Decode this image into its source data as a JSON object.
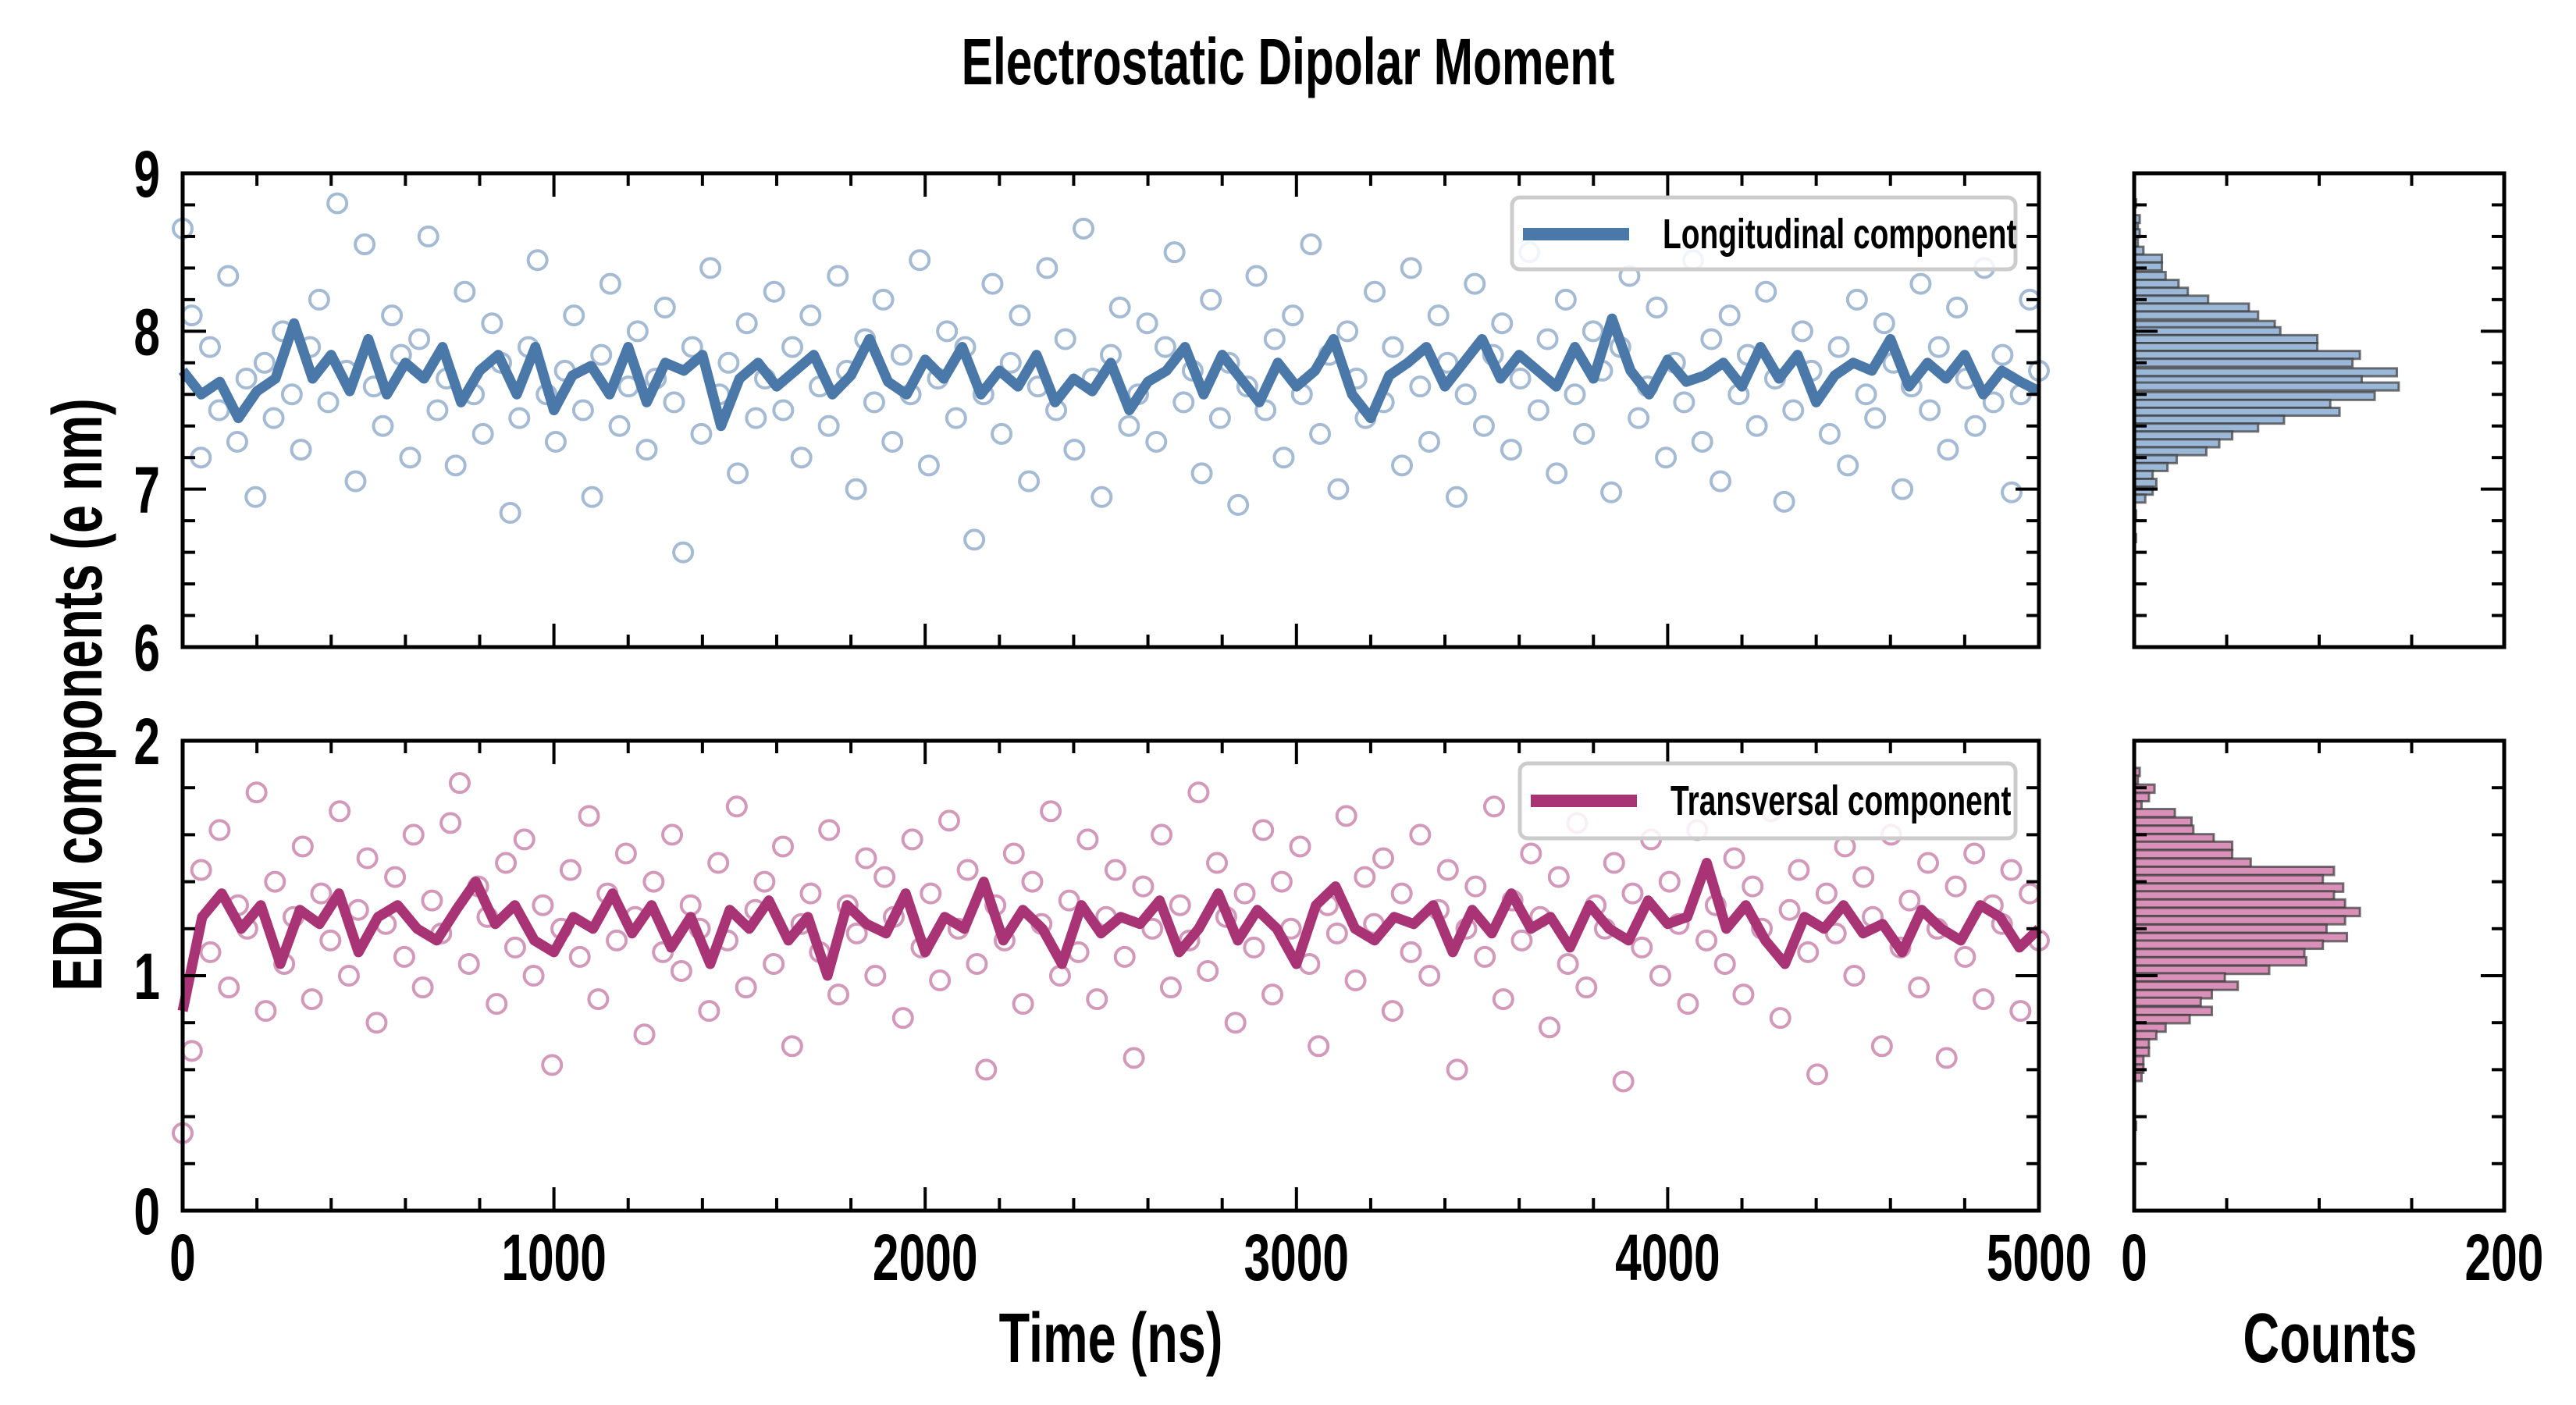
{
  "title": "Electrostatic Dipolar Moment",
  "colors": {
    "longitudinal": "#4a78a8",
    "transversal": "#a83375",
    "hist_long": "#9bb8d8",
    "hist_trans": "#d990b9",
    "hist_edge": "#3a3a3a"
  },
  "chart_data": [
    {
      "type": "scatter",
      "panel": "top-left",
      "xlabel": "Time (ns)",
      "ylabel": "EDM components (e nm)",
      "xlim": [
        0,
        5000
      ],
      "ylim": [
        6,
        9
      ],
      "xticks": [
        "0",
        "1000",
        "2000",
        "3000",
        "4000",
        "5000"
      ],
      "yticks": [
        "6",
        "7",
        "8",
        "9"
      ],
      "legend": {
        "label": "Longitudinal component",
        "position": "top-right"
      },
      "scatter_y": [
        8.65,
        8.1,
        7.2,
        7.9,
        7.5,
        8.35,
        7.3,
        7.7,
        6.95,
        7.8,
        7.45,
        8.0,
        7.6,
        7.25,
        7.9,
        8.2,
        7.55,
        8.81,
        7.75,
        7.05,
        8.55,
        7.65,
        7.4,
        8.1,
        7.85,
        7.2,
        7.95,
        8.6,
        7.5,
        7.7,
        7.15,
        8.25,
        7.6,
        7.35,
        8.05,
        7.8,
        6.85,
        7.45,
        7.9,
        8.45,
        7.6,
        7.3,
        7.75,
        8.1,
        7.5,
        6.95,
        7.85,
        8.3,
        7.4,
        7.65,
        8.0,
        7.25,
        7.7,
        8.15,
        7.55,
        6.6,
        7.9,
        7.35,
        8.4,
        7.6,
        7.8,
        7.1,
        8.05,
        7.45,
        7.7,
        8.25,
        7.5,
        7.9,
        7.2,
        8.1,
        7.65,
        7.4,
        8.35,
        7.75,
        7.0,
        7.95,
        7.55,
        8.2,
        7.3,
        7.85,
        7.6,
        8.45,
        7.15,
        7.7,
        8.0,
        7.45,
        7.9,
        6.68,
        7.6,
        8.3,
        7.35,
        7.8,
        8.1,
        7.05,
        7.65,
        8.4,
        7.5,
        7.95,
        7.25,
        8.65,
        7.7,
        6.95,
        7.85,
        8.15,
        7.4,
        7.6,
        8.05,
        7.3,
        7.9,
        8.5,
        7.55,
        7.75,
        7.1,
        8.2,
        7.45,
        7.8,
        6.9,
        7.65,
        8.35,
        7.5,
        7.95,
        7.2,
        8.1,
        7.6,
        8.55,
        7.35,
        7.85,
        7.0,
        8.0,
        7.7,
        7.45,
        8.25,
        7.55,
        7.9,
        7.15,
        8.4,
        7.65,
        7.3,
        8.1,
        7.8,
        6.95,
        7.6,
        8.3,
        7.4,
        7.85,
        8.05,
        7.25,
        7.7,
        8.5,
        7.5,
        7.95,
        7.1,
        8.2,
        7.6,
        7.35,
        8.0,
        7.75,
        6.98,
        7.9,
        8.35,
        7.45,
        7.65,
        8.15,
        7.2,
        7.8,
        7.55,
        8.45,
        7.3,
        7.95,
        7.05,
        8.1,
        7.6,
        7.85,
        7.4,
        8.25,
        7.7,
        6.92,
        7.5,
        8.0,
        7.75,
        8.6,
        7.35,
        7.9,
        7.15,
        8.2,
        7.6,
        7.45,
        8.05,
        7.8,
        7.0,
        7.65,
        8.3,
        7.5,
        7.9,
        7.25,
        8.15,
        7.7,
        7.4,
        8.4,
        7.55,
        7.85,
        6.98,
        7.6,
        8.2,
        7.75
      ],
      "moving_average_y": [
        7.75,
        7.6,
        7.68,
        7.45,
        7.62,
        7.7,
        8.05,
        7.7,
        7.85,
        7.62,
        7.95,
        7.6,
        7.8,
        7.7,
        7.9,
        7.55,
        7.75,
        7.85,
        7.6,
        7.9,
        7.5,
        7.72,
        7.78,
        7.6,
        7.9,
        7.55,
        7.8,
        7.75,
        7.85,
        7.4,
        7.7,
        7.8,
        7.65,
        7.75,
        7.85,
        7.6,
        7.72,
        7.95,
        7.68,
        7.6,
        7.82,
        7.7,
        7.9,
        7.6,
        7.75,
        7.65,
        7.85,
        7.55,
        7.7,
        7.62,
        7.8,
        7.5,
        7.68,
        7.75,
        7.9,
        7.6,
        7.85,
        7.7,
        7.55,
        7.8,
        7.65,
        7.75,
        7.95,
        7.6,
        7.45,
        7.72,
        7.8,
        7.9,
        7.65,
        7.8,
        7.95,
        7.7,
        7.85,
        7.75,
        7.65,
        7.9,
        7.7,
        8.08,
        7.75,
        7.6,
        7.82,
        7.68,
        7.72,
        7.8,
        7.65,
        7.9,
        7.7,
        7.85,
        7.55,
        7.72,
        7.8,
        7.75,
        7.95,
        7.65,
        7.8,
        7.7,
        7.85,
        7.6,
        7.75,
        7.68,
        7.62
      ]
    },
    {
      "type": "scatter",
      "panel": "bottom-left",
      "xlabel": "Time (ns)",
      "xlim": [
        0,
        5000
      ],
      "ylim": [
        0,
        2
      ],
      "xticks": [
        "0",
        "1000",
        "2000",
        "3000",
        "4000",
        "5000"
      ],
      "yticks": [
        "0",
        "1",
        "2"
      ],
      "legend": {
        "label": "Transversal component",
        "position": "top-right"
      },
      "scatter_y": [
        0.33,
        0.68,
        1.45,
        1.1,
        1.62,
        0.95,
        1.3,
        1.2,
        1.78,
        0.85,
        1.4,
        1.05,
        1.25,
        1.55,
        0.9,
        1.35,
        1.15,
        1.7,
        1.0,
        1.28,
        1.5,
        0.8,
        1.22,
        1.42,
        1.08,
        1.6,
        0.95,
        1.32,
        1.18,
        1.65,
        1.82,
        1.05,
        1.38,
        1.25,
        0.88,
        1.48,
        1.12,
        1.58,
        1.0,
        1.3,
        0.62,
        1.2,
        1.45,
        1.08,
        1.68,
        0.9,
        1.35,
        1.15,
        1.52,
        1.25,
        0.75,
        1.4,
        1.1,
        1.6,
        1.02,
        1.3,
        1.2,
        0.85,
        1.48,
        1.15,
        1.72,
        0.95,
        1.28,
        1.4,
        1.05,
        1.55,
        0.7,
        1.22,
        1.35,
        1.1,
        1.62,
        0.92,
        1.3,
        1.18,
        1.5,
        1.0,
        1.42,
        1.25,
        0.82,
        1.58,
        1.12,
        1.35,
        0.98,
        1.66,
        1.2,
        1.45,
        1.05,
        0.6,
        1.3,
        1.15,
        1.52,
        0.88,
        1.4,
        1.22,
        1.7,
        1.0,
        1.32,
        1.1,
        1.58,
        0.9,
        1.25,
        1.45,
        1.08,
        0.65,
        1.38,
        1.2,
        1.6,
        0.95,
        1.3,
        1.15,
        1.78,
        1.02,
        1.48,
        1.25,
        0.8,
        1.35,
        1.12,
        1.62,
        0.92,
        1.4,
        1.2,
        1.55,
        1.05,
        0.7,
        1.3,
        1.18,
        1.68,
        0.98,
        1.42,
        1.22,
        1.5,
        0.85,
        1.35,
        1.1,
        1.6,
        1.0,
        1.28,
        1.45,
        0.6,
        1.2,
        1.38,
        1.08,
        1.72,
        0.9,
        1.32,
        1.15,
        1.52,
        1.25,
        0.78,
        1.42,
        1.05,
        1.65,
        0.95,
        1.3,
        1.2,
        1.48,
        0.55,
        1.35,
        1.12,
        1.58,
        1.0,
        1.4,
        1.22,
        0.88,
        1.62,
        1.15,
        1.3,
        1.05,
        1.5,
        0.92,
        1.38,
        1.2,
        1.7,
        0.82,
        1.28,
        1.45,
        1.1,
        0.58,
        1.35,
        1.18,
        1.55,
        1.0,
        1.42,
        1.25,
        0.7,
        1.6,
        1.12,
        1.32,
        0.95,
        1.48,
        1.2,
        0.65,
        1.38,
        1.08,
        1.52,
        0.9,
        1.3,
        1.22,
        1.45,
        0.85,
        1.35,
        1.15
      ],
      "moving_average_y": [
        0.85,
        1.25,
        1.35,
        1.2,
        1.3,
        1.05,
        1.28,
        1.22,
        1.35,
        1.1,
        1.25,
        1.3,
        1.2,
        1.15,
        1.28,
        1.4,
        1.22,
        1.3,
        1.15,
        1.1,
        1.25,
        1.2,
        1.35,
        1.18,
        1.3,
        1.12,
        1.25,
        1.05,
        1.28,
        1.2,
        1.32,
        1.15,
        1.25,
        1.0,
        1.3,
        1.22,
        1.18,
        1.35,
        1.1,
        1.25,
        1.2,
        1.4,
        1.15,
        1.28,
        1.2,
        1.05,
        1.3,
        1.18,
        1.25,
        1.22,
        1.32,
        1.1,
        1.2,
        1.35,
        1.15,
        1.28,
        1.2,
        1.05,
        1.3,
        1.38,
        1.2,
        1.15,
        1.25,
        1.22,
        1.3,
        1.1,
        1.28,
        1.18,
        1.35,
        1.2,
        1.25,
        1.12,
        1.3,
        1.2,
        1.15,
        1.32,
        1.22,
        1.25,
        1.48,
        1.2,
        1.3,
        1.15,
        1.05,
        1.25,
        1.2,
        1.3,
        1.18,
        1.22,
        1.1,
        1.28,
        1.2,
        1.15,
        1.3,
        1.25,
        1.12,
        1.2
      ]
    },
    {
      "type": "bar",
      "orientation": "horizontal",
      "panel": "top-right",
      "xlabel": "Counts",
      "xlim": [
        0,
        200
      ],
      "ylim": [
        6,
        9
      ],
      "xticks": [
        "0",
        "200"
      ],
      "bin_width": 0.05,
      "bin_centers": [
        8.81,
        8.71,
        8.66,
        8.62,
        8.56,
        8.51,
        8.46,
        8.41,
        8.35,
        8.3,
        8.25,
        8.2,
        8.15,
        8.1,
        8.04,
        8.0,
        7.95,
        7.9,
        7.85,
        7.8,
        7.74,
        7.69,
        7.65,
        7.59,
        7.54,
        7.49,
        7.44,
        7.39,
        7.34,
        7.29,
        7.24,
        7.19,
        7.14,
        7.09,
        7.04,
        6.99,
        6.94,
        6.84,
        6.69
      ],
      "counts": [
        1,
        3,
        2,
        3,
        2,
        5,
        15,
        15,
        17,
        24,
        29,
        40,
        62,
        67,
        76,
        79,
        99,
        99,
        122,
        118,
        142,
        123,
        143,
        130,
        106,
        111,
        81,
        67,
        53,
        46,
        39,
        23,
        18,
        10,
        12,
        10,
        6,
        1,
        1
      ]
    },
    {
      "type": "bar",
      "orientation": "horizontal",
      "panel": "bottom-right",
      "xlabel": "Counts",
      "xlim": [
        0,
        200
      ],
      "ylim": [
        0,
        2
      ],
      "xticks": [
        "0",
        "200"
      ],
      "bin_width": 0.035,
      "bin_centers": [
        1.867,
        1.834,
        1.796,
        1.76,
        1.724,
        1.692,
        1.656,
        1.621,
        1.585,
        1.553,
        1.517,
        1.481,
        1.446,
        1.41,
        1.375,
        1.342,
        1.307,
        1.271,
        1.236,
        1.2,
        1.164,
        1.132,
        1.096,
        1.061,
        1.025,
        0.993,
        0.957,
        0.921,
        0.889,
        0.85,
        0.815,
        0.779,
        0.747,
        0.711,
        0.676,
        0.64,
        0.604,
        0.569,
        0.361
      ],
      "counts": [
        3,
        2,
        11,
        8,
        4,
        22,
        31,
        32,
        43,
        53,
        53,
        63,
        108,
        102,
        113,
        108,
        114,
        122,
        114,
        104,
        115,
        102,
        92,
        93,
        73,
        49,
        56,
        42,
        36,
        42,
        30,
        17,
        12,
        8,
        8,
        5,
        5,
        4,
        1
      ]
    }
  ]
}
